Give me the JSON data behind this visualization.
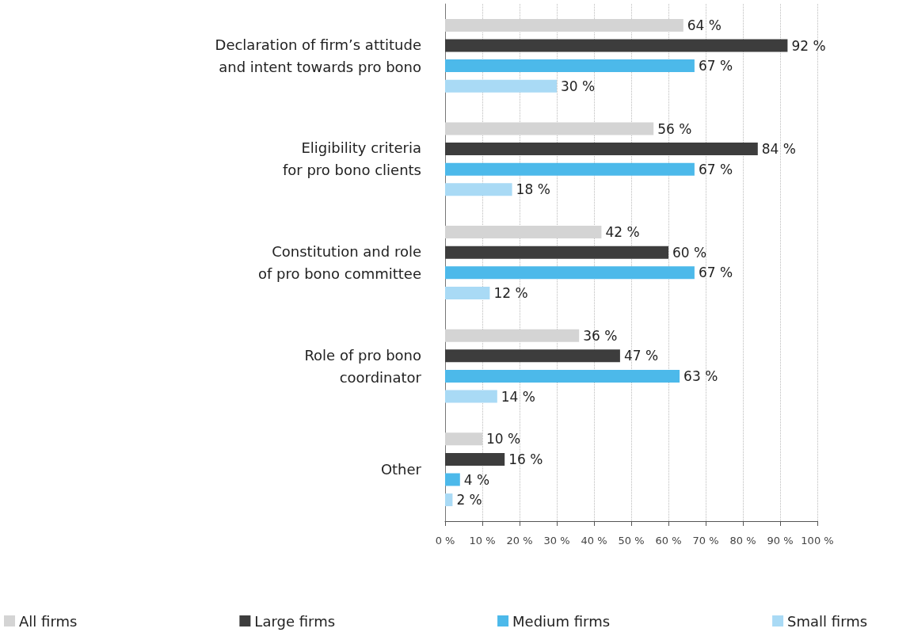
{
  "chart_data": {
    "type": "bar",
    "orientation": "horizontal",
    "categories": [
      "Declaration of firm’s attitude\nand intent towards pro bono",
      "Eligibility criteria\nfor pro bono clients",
      "Constitution and role\nof pro bono committee",
      "Role of pro bono\ncoordinator",
      "Other"
    ],
    "series": [
      {
        "name": "All firms",
        "color": "#d4d4d4",
        "values": [
          64,
          56,
          42,
          36,
          10
        ],
        "value_labels": [
          "64 %",
          "56 %",
          "42 %",
          "36 %",
          "10 %"
        ]
      },
      {
        "name": "Large firms",
        "color": "#3d3d3d",
        "values": [
          92,
          84,
          60,
          47,
          16
        ],
        "value_labels": [
          "92 %",
          "84 %",
          "60 %",
          "47 %",
          "16 %"
        ]
      },
      {
        "name": "Medium firms",
        "color": "#4cb9ea",
        "values": [
          67,
          67,
          67,
          63,
          4
        ],
        "value_labels": [
          "67 %",
          "67 %",
          "67 %",
          "63 %",
          "4 %"
        ]
      },
      {
        "name": "Small firms",
        "color": "#a9daf5",
        "values": [
          30,
          18,
          12,
          14,
          2
        ],
        "value_labels": [
          "30 %",
          "18 %",
          "12 %",
          "14 %",
          "2 %"
        ]
      }
    ],
    "xlim": [
      0,
      100
    ],
    "xticks": [
      {
        "value": 0,
        "label": "0 %"
      },
      {
        "value": 10,
        "label": "10 %"
      },
      {
        "value": 20,
        "label": "20 %"
      },
      {
        "value": 30,
        "label": "30 %"
      },
      {
        "value": 40,
        "label": "40 %"
      },
      {
        "value": 50,
        "label": "50 %"
      },
      {
        "value": 60,
        "label": "60 %"
      },
      {
        "value": 70,
        "label": "70 %"
      },
      {
        "value": 80,
        "label": "80 %"
      },
      {
        "value": 90,
        "label": "90 %"
      },
      {
        "value": 100,
        "label": "100 %"
      }
    ],
    "grid": "x",
    "legend": "bottom"
  }
}
